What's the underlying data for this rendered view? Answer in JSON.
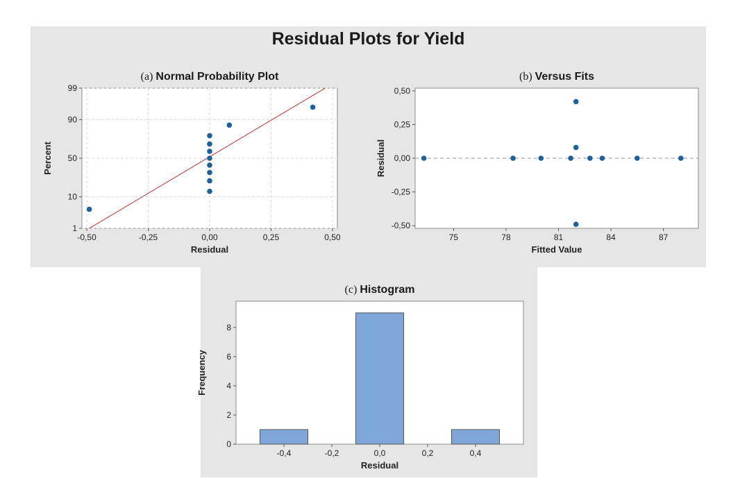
{
  "title": "Residual Plots for Yield",
  "colors": {
    "panel_background": "#e6e6e6",
    "plot_background": "#ffffff",
    "point": "#1f5f9a",
    "fit_line": "#c0504d",
    "bar_fill": "#7fa6d9",
    "bar_stroke": "#555555"
  },
  "chart_data": [
    {
      "type": "scatter",
      "title_prefix": "(a)",
      "title": "Normal Probability Plot",
      "xlabel": "Residual",
      "ylabel": "Percent",
      "xlim": [
        -0.52,
        0.52
      ],
      "y_scale": "normal-probability",
      "ylim": [
        1,
        99
      ],
      "x_ticks": [
        -0.5,
        -0.25,
        0.0,
        0.25,
        0.5
      ],
      "x_tick_labels": [
        "-0,50",
        "-0,25",
        "0,00",
        "0,25",
        "0,50"
      ],
      "y_ticks": [
        1,
        10,
        50,
        90,
        99
      ],
      "y_tick_labels": [
        "1",
        "10",
        "50",
        "90",
        "99"
      ],
      "grid": true,
      "points": [
        {
          "x": -0.49,
          "y": 4.5
        },
        {
          "x": 0.0,
          "y": 13.6
        },
        {
          "x": 0.0,
          "y": 22.7
        },
        {
          "x": 0.0,
          "y": 31.8
        },
        {
          "x": 0.0,
          "y": 40.9
        },
        {
          "x": 0.0,
          "y": 50.0
        },
        {
          "x": 0.0,
          "y": 59.1
        },
        {
          "x": 0.0,
          "y": 68.2
        },
        {
          "x": 0.0,
          "y": 77.3
        },
        {
          "x": 0.08,
          "y": 86.4
        },
        {
          "x": 0.42,
          "y": 95.5
        }
      ],
      "fit_line": [
        {
          "x": -0.49,
          "y": 1
        },
        {
          "x": 0.47,
          "y": 99
        }
      ]
    },
    {
      "type": "scatter",
      "title_prefix": "(b)",
      "title": "Versus Fits",
      "xlabel": "Fitted Value",
      "ylabel": "Residual",
      "xlim": [
        72.8,
        89.0
      ],
      "ylim": [
        -0.52,
        0.52
      ],
      "x_ticks": [
        75,
        78,
        81,
        84,
        87
      ],
      "x_tick_labels": [
        "75",
        "78",
        "81",
        "84",
        "87"
      ],
      "y_ticks": [
        -0.5,
        -0.25,
        0.0,
        0.25,
        0.5
      ],
      "y_tick_labels": [
        "-0,50",
        "-0,25",
        "0,00",
        "0,25",
        "0,50"
      ],
      "grid": false,
      "reference_line": 0,
      "points": [
        {
          "x": 73.3,
          "y": 0.0
        },
        {
          "x": 78.4,
          "y": 0.0
        },
        {
          "x": 80.0,
          "y": 0.0
        },
        {
          "x": 81.7,
          "y": 0.0
        },
        {
          "x": 82.0,
          "y": 0.42
        },
        {
          "x": 82.0,
          "y": 0.08
        },
        {
          "x": 82.0,
          "y": -0.49
        },
        {
          "x": 82.8,
          "y": 0.0
        },
        {
          "x": 83.5,
          "y": 0.0
        },
        {
          "x": 85.5,
          "y": 0.0
        },
        {
          "x": 88.0,
          "y": 0.0
        }
      ]
    },
    {
      "type": "bar",
      "title_prefix": "(c)",
      "title": "Histogram",
      "xlabel": "Residual",
      "ylabel": "Frequency",
      "xlim": [
        -0.6,
        0.6
      ],
      "ylim": [
        0,
        9.8
      ],
      "x_ticks": [
        -0.4,
        -0.2,
        0.0,
        0.2,
        0.4
      ],
      "x_tick_labels": [
        "-0,4",
        "-0,2",
        "0,0",
        "0,2",
        "0,4"
      ],
      "y_ticks": [
        0,
        2,
        4,
        6,
        8
      ],
      "y_tick_labels": [
        "0",
        "2",
        "4",
        "6",
        "8"
      ],
      "grid": false,
      "bins": [
        {
          "center": -0.4,
          "width": 0.2,
          "value": 1
        },
        {
          "center": 0.0,
          "width": 0.2,
          "value": 9
        },
        {
          "center": 0.4,
          "width": 0.2,
          "value": 1
        }
      ]
    }
  ]
}
